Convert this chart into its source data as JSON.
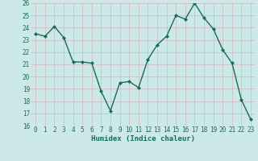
{
  "x": [
    0,
    1,
    2,
    3,
    4,
    5,
    6,
    7,
    8,
    9,
    10,
    11,
    12,
    13,
    14,
    15,
    16,
    17,
    18,
    19,
    20,
    21,
    22,
    23
  ],
  "y": [
    23.5,
    23.3,
    24.1,
    23.2,
    21.2,
    21.2,
    21.1,
    18.8,
    17.2,
    19.5,
    19.6,
    19.1,
    21.4,
    22.6,
    23.3,
    25.0,
    24.7,
    26.0,
    24.8,
    23.9,
    22.2,
    21.1,
    18.1,
    16.5
  ],
  "line_color": "#1a6b5a",
  "marker": "D",
  "marker_size": 2.0,
  "linewidth": 1.0,
  "ylim": [
    16,
    26
  ],
  "xlim": [
    -0.5,
    23.5
  ],
  "yticks": [
    16,
    17,
    18,
    19,
    20,
    21,
    22,
    23,
    24,
    25,
    26
  ],
  "xticks": [
    0,
    1,
    2,
    3,
    4,
    5,
    6,
    7,
    8,
    9,
    10,
    11,
    12,
    13,
    14,
    15,
    16,
    17,
    18,
    19,
    20,
    21,
    22,
    23
  ],
  "xlabel": "Humidex (Indice chaleur)",
  "background_color": "#cce8e8",
  "grid_color": "#b0d4d4",
  "tick_fontsize": 5.5,
  "label_fontsize": 6.5
}
